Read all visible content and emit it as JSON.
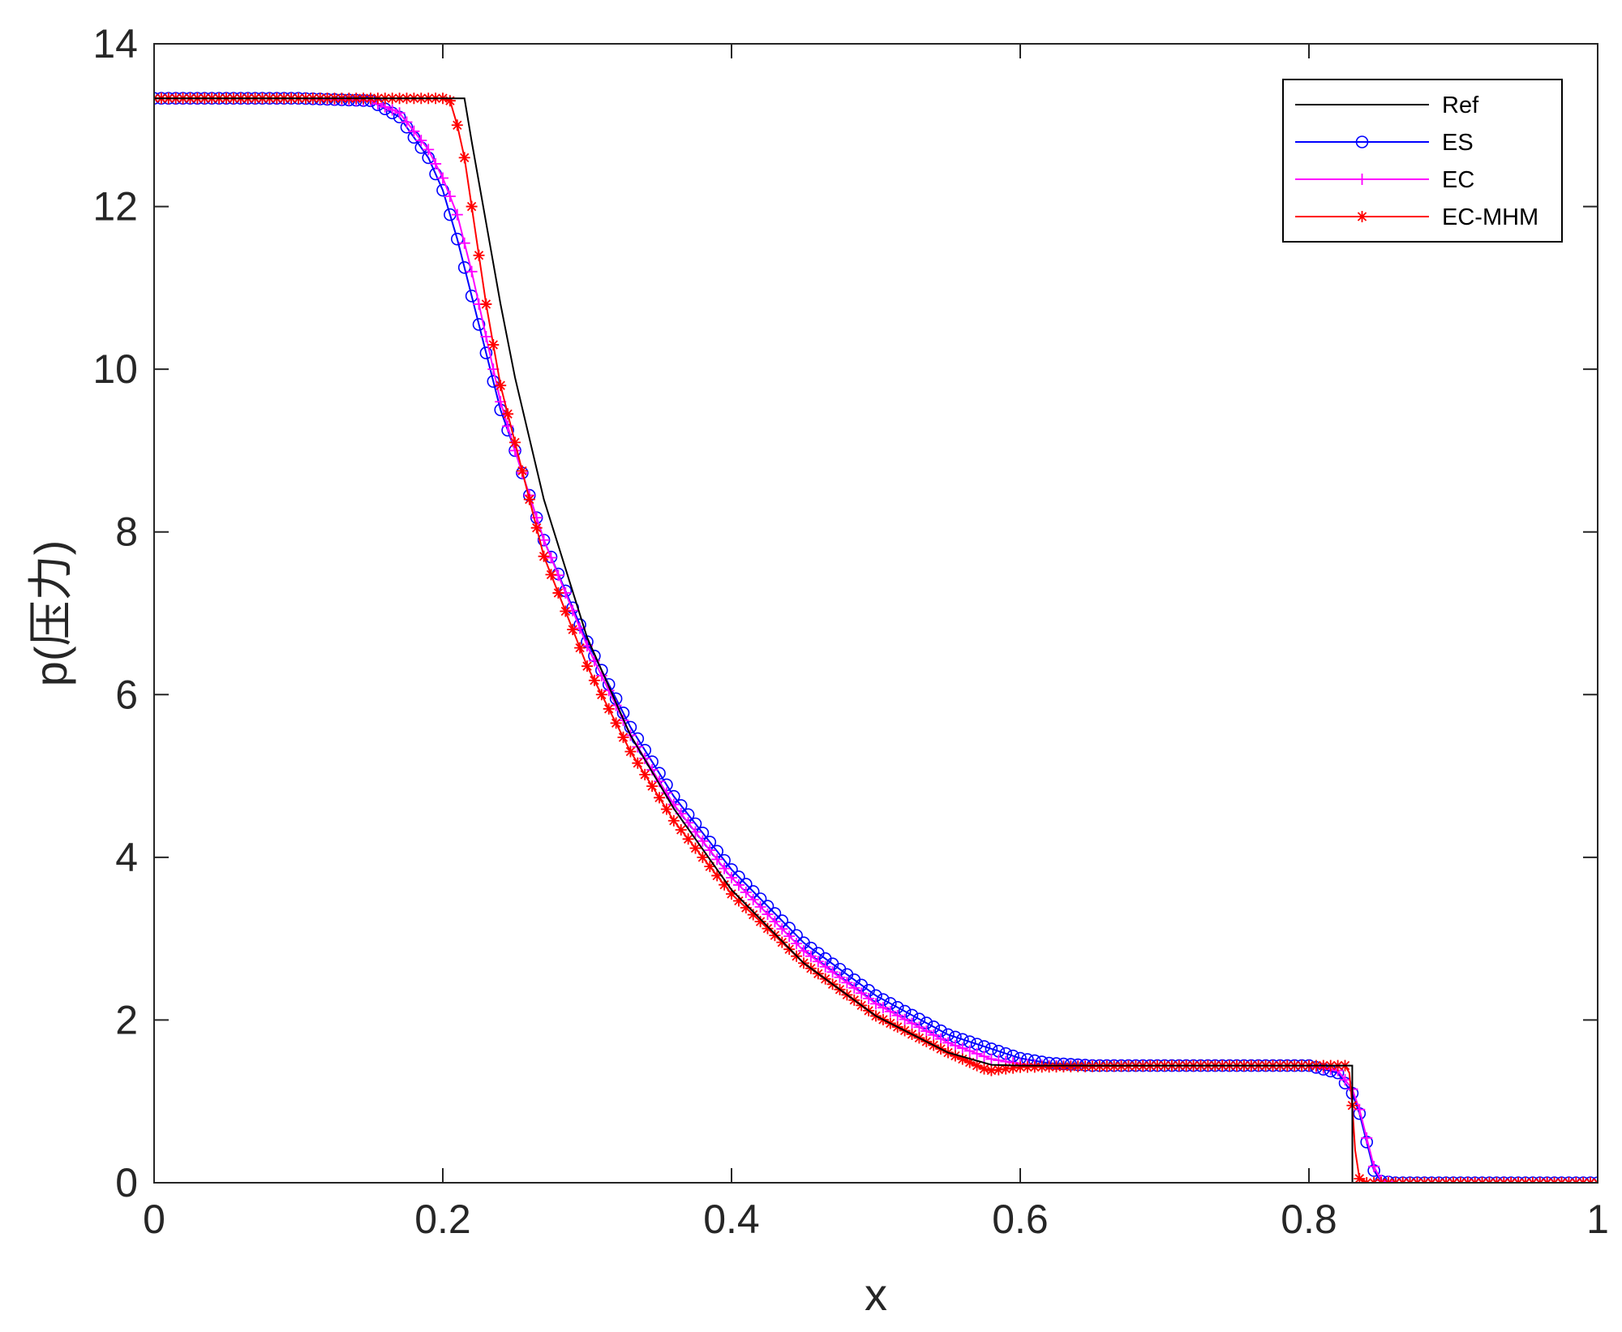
{
  "chart_data": {
    "type": "line",
    "xlabel": "x",
    "ylabel": "p(压力)",
    "xlim": [
      0,
      1
    ],
    "ylim": [
      0,
      14
    ],
    "xticks": [
      0,
      0.2,
      0.4,
      0.6,
      0.8,
      1
    ],
    "xtick_labels": [
      "0",
      "0.2",
      "0.4",
      "0.6",
      "0.8",
      "1"
    ],
    "yticks": [
      0,
      2,
      4,
      6,
      8,
      10,
      12,
      14
    ],
    "ytick_labels": [
      "0",
      "2",
      "4",
      "6",
      "8",
      "10",
      "12",
      "14"
    ],
    "grid": false,
    "legend_position": "top-right",
    "series": [
      {
        "name": "Ref",
        "color": "#000000",
        "marker": "none",
        "x": [
          0,
          0.2,
          0.21,
          0.215,
          0.22,
          0.23,
          0.24,
          0.25,
          0.27,
          0.3,
          0.33,
          0.36,
          0.4,
          0.45,
          0.5,
          0.55,
          0.58,
          0.6,
          0.62,
          0.7,
          0.8,
          0.83,
          0.8301,
          1
        ],
        "y": [
          13.33,
          13.33,
          13.33,
          13.33,
          12.8,
          11.8,
          10.8,
          9.9,
          8.4,
          6.7,
          5.5,
          4.6,
          3.6,
          2.7,
          2.05,
          1.6,
          1.45,
          1.44,
          1.44,
          1.44,
          1.44,
          1.44,
          0.0,
          0.0
        ]
      },
      {
        "name": "ES",
        "color": "#0000ff",
        "marker": "circle",
        "x": [
          0,
          0.1,
          0.15,
          0.17,
          0.19,
          0.2,
          0.21,
          0.22,
          0.23,
          0.24,
          0.25,
          0.27,
          0.3,
          0.33,
          0.36,
          0.4,
          0.45,
          0.5,
          0.55,
          0.6,
          0.62,
          0.65,
          0.7,
          0.8,
          0.82,
          0.83,
          0.835,
          0.84,
          0.845,
          0.85,
          0.86,
          1
        ],
        "y": [
          13.33,
          13.33,
          13.3,
          13.1,
          12.6,
          12.2,
          11.6,
          10.9,
          10.2,
          9.5,
          9.0,
          7.9,
          6.65,
          5.6,
          4.75,
          3.85,
          2.95,
          2.3,
          1.82,
          1.53,
          1.47,
          1.44,
          1.44,
          1.44,
          1.35,
          1.1,
          0.85,
          0.5,
          0.15,
          0.02,
          0.0,
          0.0
        ]
      },
      {
        "name": "EC",
        "color": "#ff00ff",
        "marker": "plus",
        "x": [
          0,
          0.1,
          0.15,
          0.17,
          0.19,
          0.2,
          0.21,
          0.22,
          0.23,
          0.24,
          0.25,
          0.27,
          0.3,
          0.33,
          0.36,
          0.4,
          0.45,
          0.5,
          0.55,
          0.58,
          0.6,
          0.62,
          0.65,
          0.7,
          0.8,
          0.82,
          0.83,
          0.835,
          0.84,
          0.845,
          0.85,
          0.86,
          1
        ],
        "y": [
          13.33,
          13.33,
          13.3,
          13.15,
          12.7,
          12.35,
          11.9,
          11.2,
          10.4,
          9.6,
          9.0,
          7.9,
          6.6,
          5.5,
          4.65,
          3.75,
          2.85,
          2.2,
          1.72,
          1.52,
          1.46,
          1.44,
          1.44,
          1.44,
          1.44,
          1.38,
          1.15,
          0.9,
          0.55,
          0.2,
          0.03,
          0.0,
          0.0
        ]
      },
      {
        "name": "EC-MHM",
        "color": "#ff0000",
        "marker": "star",
        "x": [
          0,
          0.1,
          0.2,
          0.205,
          0.21,
          0.215,
          0.22,
          0.225,
          0.23,
          0.235,
          0.24,
          0.25,
          0.27,
          0.3,
          0.33,
          0.36,
          0.4,
          0.45,
          0.5,
          0.55,
          0.575,
          0.58,
          0.6,
          0.7,
          0.8,
          0.825,
          0.828,
          0.83,
          0.832,
          0.835,
          0.84,
          1
        ],
        "y": [
          13.33,
          13.33,
          13.33,
          13.3,
          13.0,
          12.6,
          12.0,
          11.4,
          10.8,
          10.3,
          9.8,
          9.1,
          7.7,
          6.35,
          5.3,
          4.45,
          3.55,
          2.7,
          2.05,
          1.6,
          1.4,
          1.38,
          1.42,
          1.44,
          1.44,
          1.44,
          1.35,
          0.95,
          0.4,
          0.05,
          0.0,
          0.0
        ]
      }
    ]
  }
}
